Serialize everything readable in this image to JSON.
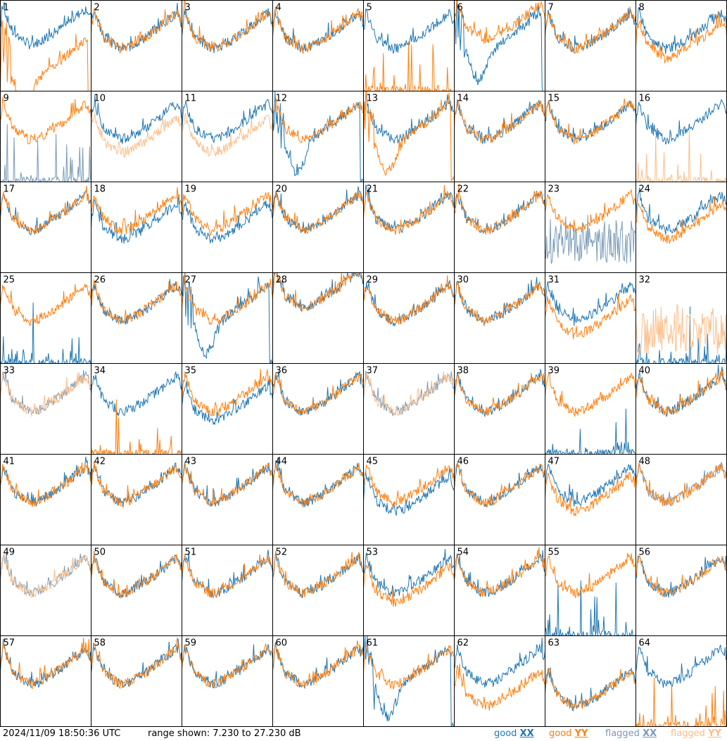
{
  "chart_data": {
    "type": "line",
    "layout": "8x8 small multiples",
    "ylim": [
      7.23,
      27.23
    ],
    "yunit": "dB",
    "panel_labels": [
      "1",
      "2",
      "3",
      "4",
      "5",
      "6",
      "7",
      "8",
      "9",
      "10",
      "11",
      "12",
      "13",
      "14",
      "15",
      "16",
      "17",
      "18",
      "19",
      "20",
      "21",
      "22",
      "23",
      "24",
      "25",
      "26",
      "27",
      "28",
      "29",
      "30",
      "31",
      "32",
      "33",
      "34",
      "35",
      "36",
      "37",
      "38",
      "39",
      "40",
      "41",
      "42",
      "43",
      "44",
      "45",
      "46",
      "47",
      "48",
      "49",
      "50",
      "51",
      "52",
      "53",
      "54",
      "55",
      "56",
      "57",
      "58",
      "59",
      "60",
      "61",
      "62",
      "63",
      "64"
    ],
    "x_knots": [
      0,
      0.03,
      0.08,
      0.14,
      0.22,
      0.32,
      0.42,
      0.55,
      0.7,
      0.85,
      0.95,
      1
    ],
    "y_profile_good": [
      20,
      25,
      22,
      19,
      18,
      16.5,
      17,
      18.5,
      20.5,
      23,
      24.5,
      22
    ],
    "series_styles": {
      "good_xx": "#1f77b4",
      "good_yy": "#ff7f0e",
      "flagged_xx": "#7a9bb8",
      "flagged_yy": "#fbbe8a"
    },
    "panels": [
      {
        "n": 1,
        "xx": "good",
        "yy": "good",
        "xx_off": 1,
        "yy_off": -6,
        "yy_shape": "dip"
      },
      {
        "n": 2,
        "xx": "good",
        "yy": "good"
      },
      {
        "n": 3,
        "xx": "good",
        "yy": "good"
      },
      {
        "n": 4,
        "xx": "good",
        "yy": "good"
      },
      {
        "n": 5,
        "xx": "good",
        "yy": "good",
        "yy_shape": "spikes"
      },
      {
        "n": 6,
        "xx": "good",
        "yy": "good",
        "xx_shape": "dip",
        "yy_off": 2
      },
      {
        "n": 7,
        "xx": "good",
        "yy": "good"
      },
      {
        "n": 8,
        "xx": "good",
        "yy": "good",
        "yy_off": -2
      },
      {
        "n": 9,
        "xx": "flagged",
        "yy": "good",
        "xx_shape": "spikes"
      },
      {
        "n": 10,
        "xx": "good",
        "yy": "flagged",
        "yy_off": -3
      },
      {
        "n": 11,
        "xx": "good",
        "yy": "flagged",
        "yy_off": -3
      },
      {
        "n": 12,
        "xx": "good",
        "yy": "good",
        "xx_shape": "dip"
      },
      {
        "n": 13,
        "xx": "good",
        "yy": "good",
        "yy_shape": "dip"
      },
      {
        "n": 14,
        "xx": "good",
        "yy": "good"
      },
      {
        "n": 15,
        "xx": "good",
        "yy": "good"
      },
      {
        "n": 16,
        "xx": "good",
        "yy": "flagged",
        "yy_shape": "spikes"
      },
      {
        "n": 17,
        "xx": "good",
        "yy": "good"
      },
      {
        "n": 18,
        "xx": "good",
        "yy": "good",
        "xx_off": -2
      },
      {
        "n": 19,
        "xx": "good",
        "yy": "good",
        "xx_off": -2
      },
      {
        "n": 20,
        "xx": "good",
        "yy": "good"
      },
      {
        "n": 21,
        "xx": "good",
        "yy": "good"
      },
      {
        "n": 22,
        "xx": "good",
        "yy": "good"
      },
      {
        "n": 23,
        "xx": "flagged",
        "yy": "good",
        "xx_shape": "noisy"
      },
      {
        "n": 24,
        "xx": "good",
        "yy": "good",
        "yy_off": -2
      },
      {
        "n": 25,
        "xx": "good",
        "yy": "good",
        "xx_shape": "spikes"
      },
      {
        "n": 26,
        "xx": "good",
        "yy": "good"
      },
      {
        "n": 27,
        "xx": "good",
        "yy": "good",
        "xx_shape": "dip"
      },
      {
        "n": 28,
        "xx": "good",
        "yy": "good",
        "xx_off": 3,
        "yy_off": 3
      },
      {
        "n": 29,
        "xx": "good",
        "yy": "good"
      },
      {
        "n": 30,
        "xx": "good",
        "yy": "good"
      },
      {
        "n": 31,
        "xx": "good",
        "yy": "good",
        "yy_off": -3
      },
      {
        "n": 32,
        "xx": "good",
        "yy": "flagged",
        "xx_shape": "spikes",
        "yy_shape": "noisy"
      },
      {
        "n": 33,
        "xx": "flagged",
        "yy": "flagged"
      },
      {
        "n": 34,
        "xx": "good",
        "yy": "good",
        "yy_shape": "spikes"
      },
      {
        "n": 35,
        "xx": "good",
        "yy": "good",
        "xx_off": -2
      },
      {
        "n": 36,
        "xx": "good",
        "yy": "good"
      },
      {
        "n": 37,
        "xx": "flagged",
        "yy": "flagged"
      },
      {
        "n": 38,
        "xx": "good",
        "yy": "good"
      },
      {
        "n": 39,
        "xx": "good",
        "yy": "good",
        "xx_shape": "spikes"
      },
      {
        "n": 40,
        "xx": "good",
        "yy": "good"
      },
      {
        "n": 41,
        "xx": "good",
        "yy": "good"
      },
      {
        "n": 42,
        "xx": "good",
        "yy": "good"
      },
      {
        "n": 43,
        "xx": "good",
        "yy": "good"
      },
      {
        "n": 44,
        "xx": "good",
        "yy": "good"
      },
      {
        "n": 45,
        "xx": "good",
        "yy": "good",
        "xx_off": -2
      },
      {
        "n": 46,
        "xx": "good",
        "yy": "good"
      },
      {
        "n": 47,
        "xx": "good",
        "yy": "good",
        "yy_off": -2
      },
      {
        "n": 48,
        "xx": "flagged",
        "yy": "good"
      },
      {
        "n": 49,
        "xx": "flagged",
        "yy": "flagged"
      },
      {
        "n": 50,
        "xx": "good",
        "yy": "good"
      },
      {
        "n": 51,
        "xx": "good",
        "yy": "good"
      },
      {
        "n": 52,
        "xx": "good",
        "yy": "good"
      },
      {
        "n": 53,
        "xx": "good",
        "yy": "good",
        "yy_off": -2
      },
      {
        "n": 54,
        "xx": "good",
        "yy": "good"
      },
      {
        "n": 55,
        "xx": "good",
        "yy": "good",
        "xx_shape": "spikes"
      },
      {
        "n": 56,
        "xx": "good",
        "yy": "good"
      },
      {
        "n": 57,
        "xx": "good",
        "yy": "good"
      },
      {
        "n": 58,
        "xx": "good",
        "yy": "good"
      },
      {
        "n": 59,
        "xx": "good",
        "yy": "good"
      },
      {
        "n": 60,
        "xx": "good",
        "yy": "good"
      },
      {
        "n": 61,
        "xx": "good",
        "yy": "good",
        "xx_shape": "dip"
      },
      {
        "n": 62,
        "xx": "good",
        "yy": "good",
        "yy_off": -5
      },
      {
        "n": 63,
        "xx": "good",
        "yy": "good",
        "xx_off": -5,
        "yy_off": -5
      },
      {
        "n": 64,
        "xx": "good",
        "yy": "good",
        "yy_shape": "spikes"
      }
    ]
  },
  "footer": {
    "timestamp": "2024/11/09 18:50:36 UTC",
    "range_text": "range shown: 7.230 to 27.230 dB",
    "legend": [
      {
        "prefix": "good",
        "pol": "XX",
        "color": "#1f77b4"
      },
      {
        "prefix": "good",
        "pol": "YY",
        "color": "#ff7f0e"
      },
      {
        "prefix": "flagged",
        "pol": "XX",
        "color": "#7a9bb8"
      },
      {
        "prefix": "flagged",
        "pol": "YY",
        "color": "#fbbe8a"
      }
    ]
  }
}
